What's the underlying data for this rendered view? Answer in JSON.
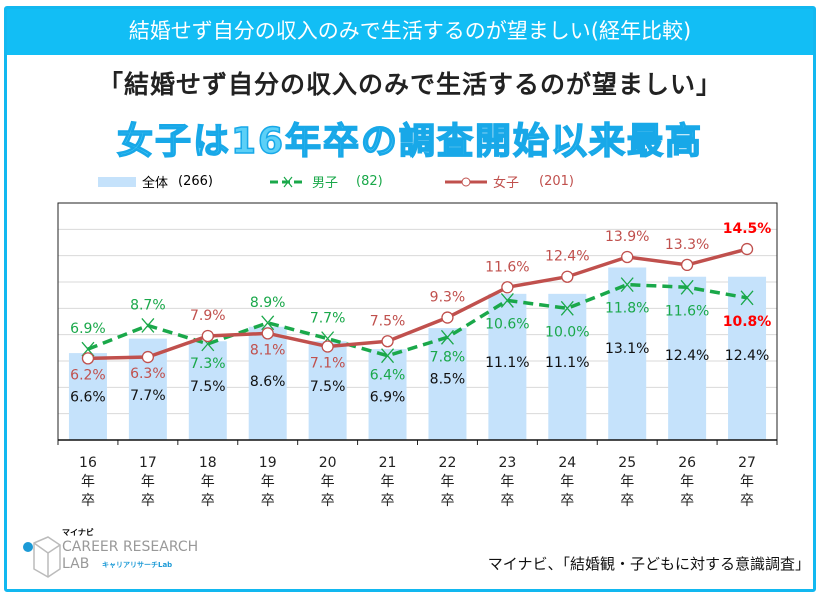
{
  "banner": "結婚せず自分の収入のみで生活するのが望ましい(経年比較)",
  "subtitle": "「結婚せず自分の収入のみで生活するのが望ましい」",
  "headline": "女子は16年卒の調査開始以来最高",
  "legend": {
    "total": "全体",
    "total_n": "(266)",
    "male": "男子",
    "male_n": "(82)",
    "female": "女子",
    "female_n": "(201)"
  },
  "logo": {
    "brand": "マイナビ",
    "line1": "CAREER RESEARCH",
    "line2": "LAB",
    "kana": "キャリアリサーチLab"
  },
  "source": "マイナビ、「結婚観・子どもに対する意識調査」",
  "colors": {
    "bar": "#c5e2fb",
    "male": "#1aa84a",
    "female": "#c0504d",
    "highlight": "#ff0000",
    "accent": "#12bef5"
  },
  "chart_data": {
    "type": "bar+line",
    "categories": [
      "16年卒",
      "17年卒",
      "18年卒",
      "19年卒",
      "20年卒",
      "21年卒",
      "22年卒",
      "23年卒",
      "24年卒",
      "25年卒",
      "26年卒",
      "27年卒"
    ],
    "category_labels": [
      [
        "16",
        "年",
        "卒"
      ],
      [
        "17",
        "年",
        "卒"
      ],
      [
        "18",
        "年",
        "卒"
      ],
      [
        "19",
        "年",
        "卒"
      ],
      [
        "20",
        "年",
        "卒"
      ],
      [
        "21",
        "年",
        "卒"
      ],
      [
        "22",
        "年",
        "卒"
      ],
      [
        "23",
        "年",
        "卒"
      ],
      [
        "24",
        "年",
        "卒"
      ],
      [
        "25",
        "年",
        "卒"
      ],
      [
        "26",
        "年",
        "卒"
      ],
      [
        "27",
        "年",
        "卒"
      ]
    ],
    "series": [
      {
        "name": "全体 (266)",
        "type": "bar",
        "values": [
          6.6,
          7.7,
          7.5,
          8.6,
          7.5,
          6.9,
          8.5,
          11.1,
          11.1,
          13.1,
          12.4,
          12.4
        ]
      },
      {
        "name": "男子 (82)",
        "type": "line",
        "style": "dashed",
        "marker": "x",
        "values": [
          6.9,
          8.7,
          7.3,
          8.9,
          7.7,
          6.4,
          7.8,
          10.6,
          10.0,
          11.8,
          11.6,
          10.8
        ]
      },
      {
        "name": "女子 (201)",
        "type": "line",
        "marker": "circle",
        "values": [
          6.2,
          6.3,
          7.9,
          8.1,
          7.1,
          7.5,
          9.3,
          11.6,
          12.4,
          13.9,
          13.3,
          14.5
        ]
      }
    ],
    "ylim": [
      0,
      18
    ],
    "grid": true,
    "yticks_visible": false,
    "legend_position": "top"
  }
}
